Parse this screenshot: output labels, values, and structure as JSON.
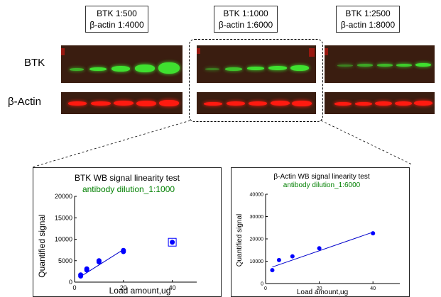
{
  "conditions": [
    {
      "line1": "BTK 1:500",
      "line2": "β-actin 1:4000"
    },
    {
      "line1": "BTK 1:1000",
      "line2": "β-actin 1:6000"
    },
    {
      "line1": "BTK 1:2500",
      "line2": "β-actin 1:8000"
    }
  ],
  "rows": {
    "btk": "BTK",
    "actin": "β-Actin"
  },
  "colors": {
    "btk_band": "#3fe02f",
    "actin_band": "#ff1a10",
    "membrane": "#3a1d10",
    "point": "#0000ff",
    "fit_line": "#0000cc",
    "subtitle": "#008000"
  },
  "chart_data": [
    {
      "type": "scatter",
      "title": "BTK WB signal linearity test",
      "subtitle": "antibody dilution_1:1000",
      "xlabel": "Load amount,ug",
      "ylabel": "Quantified signal",
      "xlim": [
        0,
        50
      ],
      "ylim": [
        0,
        20000
      ],
      "xticks": [
        "0",
        "20",
        "40"
      ],
      "yticks": [
        "0",
        "5000",
        "10000",
        "15000",
        "20000"
      ],
      "x": [
        2.5,
        2.5,
        5,
        5,
        10,
        10,
        20,
        20,
        40
      ],
      "y": [
        1400,
        1700,
        2800,
        3100,
        4700,
        5000,
        7100,
        7400,
        9300
      ],
      "fit": [
        [
          2.5,
          1300
        ],
        [
          20,
          7600
        ]
      ],
      "outlier_marked": [
        40,
        9300
      ],
      "grid": false
    },
    {
      "type": "scatter",
      "title": "β-Actin WB signal linearity test",
      "subtitle": "antibody dilution_1:6000",
      "xlabel": "Load amount,ug",
      "ylabel": "Quantified signal",
      "xlim": [
        0,
        50
      ],
      "ylim": [
        0,
        40000
      ],
      "xticks": [
        "0",
        "20",
        "40"
      ],
      "yticks": [
        "0",
        "10000",
        "20000",
        "30000",
        "40000"
      ],
      "x": [
        2.5,
        5,
        10,
        20,
        40
      ],
      "y": [
        6000,
        10500,
        12200,
        15800,
        22500
      ],
      "fit": [
        [
          2.5,
          7400
        ],
        [
          40,
          23000
        ]
      ],
      "grid": false
    }
  ]
}
